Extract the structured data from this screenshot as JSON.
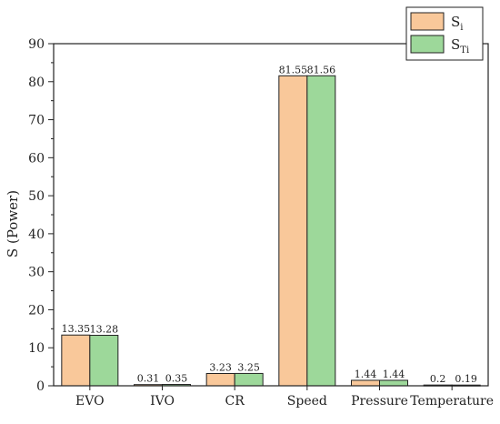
{
  "chart_data": {
    "type": "bar",
    "categories": [
      "EVO",
      "IVO",
      "CR",
      "Speed",
      "Pressure",
      "Temperature"
    ],
    "series": [
      {
        "name": "S_i",
        "legend": {
          "main": "S",
          "sub": "i"
        },
        "color": "#f9c89a",
        "values": [
          13.35,
          0.31,
          3.23,
          81.55,
          1.44,
          0.2
        ],
        "value_labels": [
          "13.35",
          "0.31",
          "3.23",
          "81.55",
          "1.44",
          "0.2"
        ]
      },
      {
        "name": "S_Ti",
        "legend": {
          "main": "S",
          "sub": "Ti"
        },
        "color": "#9dd89a",
        "values": [
          13.28,
          0.35,
          3.25,
          81.56,
          1.44,
          0.19
        ],
        "value_labels": [
          "13.28",
          "0.35",
          "3.25",
          "81.56",
          "1.44",
          "0.19"
        ]
      }
    ],
    "ylabel": "S (Power)",
    "xlabel": "",
    "ylim": [
      0,
      90
    ],
    "yticks": [
      0,
      10,
      20,
      30,
      40,
      50,
      60,
      70,
      80,
      90
    ],
    "legend_position": "top-right",
    "grid": false
  }
}
